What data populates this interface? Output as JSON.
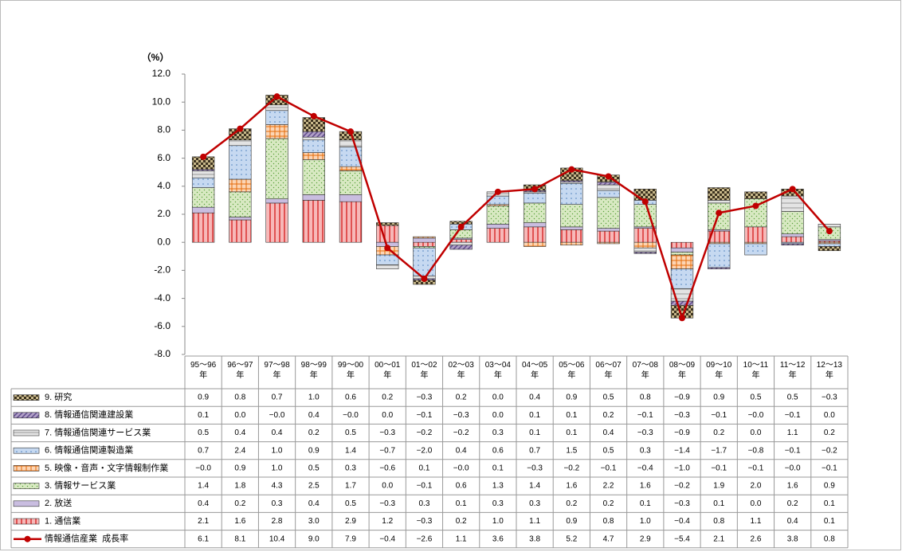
{
  "chart_data": {
    "type": "bar",
    "stacked": true,
    "y_label": "（%）",
    "categories": [
      "95～96\n年",
      "96～97\n年",
      "97～98\n年",
      "98～99\n年",
      "99～00\n年",
      "00～01\n年",
      "01～02\n年",
      "02～03\n年",
      "03～04\n年",
      "04～05\n年",
      "05～06\n年",
      "06～07\n年",
      "07～08\n年",
      "08～09\n年",
      "09～10\n年",
      "10～11\n年",
      "11～12\n年",
      "12～13\n年"
    ],
    "ylim": [
      -8,
      12
    ],
    "yticks": [
      {
        "value": 12,
        "label": "12.0"
      },
      {
        "value": 10,
        "label": "10.0"
      },
      {
        "value": 8,
        "label": "8.0"
      },
      {
        "value": 6,
        "label": "6.0"
      },
      {
        "value": 4,
        "label": "4.0"
      },
      {
        "value": 2,
        "label": "2.0"
      },
      {
        "value": 0,
        "label": "0.0"
      },
      {
        "value": -2,
        "label": "-2.0"
      },
      {
        "value": -4,
        "label": "-4.0"
      },
      {
        "value": -6,
        "label": "-6.0"
      },
      {
        "value": -8,
        "label": "-8.0"
      }
    ],
    "grid": false,
    "series": [
      {
        "name": "9. 研究",
        "color": "#c8b88a",
        "pattern": "checker",
        "values": [
          0.9,
          0.8,
          0.7,
          1.0,
          0.6,
          0.2,
          -0.3,
          0.2,
          0.0,
          0.4,
          0.9,
          0.5,
          0.8,
          -0.9,
          0.9,
          0.5,
          0.5,
          -0.3
        ],
        "value_labels": [
          "0.9",
          "0.8",
          "0.7",
          "1.0",
          "0.6",
          "0.2",
          "−0.3",
          "0.2",
          "0.0",
          "0.4",
          "0.9",
          "0.5",
          "0.8",
          "−0.9",
          "0.9",
          "0.5",
          "0.5",
          "−0.3"
        ]
      },
      {
        "name": "8. 情報通信関連建設業",
        "color": "#b1a0c7",
        "pattern": "hatch",
        "values": [
          0.1,
          0.0,
          0,
          0.4,
          0,
          0.0,
          -0.1,
          -0.3,
          0.0,
          0.1,
          0.1,
          0.2,
          -0.1,
          -0.3,
          -0.1,
          0,
          -0.1,
          0.0
        ],
        "value_labels": [
          "0.1",
          "0.0",
          "−0.0",
          "0.4",
          "−0.0",
          "0.0",
          "−0.1",
          "−0.3",
          "0.0",
          "0.1",
          "0.1",
          "0.2",
          "−0.1",
          "−0.3",
          "−0.1",
          "−0.0",
          "−0.1",
          "0.0"
        ]
      },
      {
        "name": "7. 情報通信関連サービス業",
        "color": "#e3e3e3",
        "pattern": "hline",
        "values": [
          0.5,
          0.4,
          0.4,
          0.2,
          0.5,
          -0.3,
          -0.2,
          -0.2,
          0.3,
          0.1,
          0.1,
          0.4,
          -0.3,
          -0.9,
          0.2,
          0.0,
          1.1,
          0.2
        ],
        "value_labels": [
          "0.5",
          "0.4",
          "0.4",
          "0.2",
          "0.5",
          "−0.3",
          "−0.2",
          "−0.2",
          "0.3",
          "0.1",
          "0.1",
          "0.4",
          "−0.3",
          "−0.9",
          "0.2",
          "0.0",
          "1.1",
          "0.2"
        ]
      },
      {
        "name": "6. 情報通信関連製造業",
        "color": "#c6d9f1",
        "pattern": "dots",
        "values": [
          0.7,
          2.4,
          1.0,
          0.9,
          1.4,
          -0.7,
          -2.0,
          0.4,
          0.6,
          0.7,
          1.5,
          0.5,
          0.3,
          -1.4,
          -1.7,
          -0.8,
          -0.1,
          -0.2
        ],
        "value_labels": [
          "0.7",
          "2.4",
          "1.0",
          "0.9",
          "1.4",
          "−0.7",
          "−2.0",
          "0.4",
          "0.6",
          "0.7",
          "1.5",
          "0.5",
          "0.3",
          "−1.4",
          "−1.7",
          "−0.8",
          "−0.1",
          "−0.2"
        ]
      },
      {
        "name": "5. 映像・音声・文字情報制作業",
        "color": "#fcd5b4",
        "pattern": "grid",
        "values": [
          0,
          0.9,
          1.0,
          0.5,
          0.3,
          -0.6,
          0.1,
          0,
          0.1,
          -0.3,
          -0.2,
          -0.1,
          -0.4,
          -1.0,
          -0.1,
          -0.1,
          0,
          -0.1
        ],
        "value_labels": [
          "−0.0",
          "0.9",
          "1.0",
          "0.5",
          "0.3",
          "−0.6",
          "0.1",
          "−0.0",
          "0.1",
          "−0.3",
          "−0.2",
          "−0.1",
          "−0.4",
          "−1.0",
          "−0.1",
          "−0.1",
          "−0.0",
          "−0.1"
        ]
      },
      {
        "name": "3. 情報サービス業",
        "color": "#d8e9c2",
        "pattern": "sdots",
        "values": [
          1.4,
          1.8,
          4.3,
          2.5,
          1.7,
          0.0,
          -0.1,
          0.6,
          1.3,
          1.4,
          1.6,
          2.2,
          1.6,
          -0.2,
          1.9,
          2.0,
          1.6,
          0.9
        ],
        "value_labels": [
          "1.4",
          "1.8",
          "4.3",
          "2.5",
          "1.7",
          "0.0",
          "−0.1",
          "0.6",
          "1.3",
          "1.4",
          "1.6",
          "2.2",
          "1.6",
          "−0.2",
          "1.9",
          "2.0",
          "1.6",
          "0.9"
        ]
      },
      {
        "name": "2. 放送",
        "color": "#c9bde0",
        "pattern": "solid",
        "values": [
          0.4,
          0.2,
          0.3,
          0.4,
          0.5,
          -0.3,
          0.3,
          0.1,
          0.3,
          0.3,
          0.2,
          0.2,
          0.1,
          -0.3,
          0.1,
          0.0,
          0.2,
          0.1
        ],
        "value_labels": [
          "0.4",
          "0.2",
          "0.3",
          "0.4",
          "0.5",
          "−0.3",
          "0.3",
          "0.1",
          "0.3",
          "0.3",
          "0.2",
          "0.2",
          "0.1",
          "−0.3",
          "0.1",
          "0.0",
          "0.2",
          "0.1"
        ]
      },
      {
        "name": "1. 通信業",
        "color": "#f7b8b8",
        "pattern": "stripes",
        "values": [
          2.1,
          1.6,
          2.8,
          3.0,
          2.9,
          1.2,
          -0.3,
          0.2,
          1.0,
          1.1,
          0.9,
          0.8,
          1.0,
          -0.4,
          0.8,
          1.1,
          0.4,
          0.1
        ],
        "value_labels": [
          "2.1",
          "1.6",
          "2.8",
          "3.0",
          "2.9",
          "1.2",
          "−0.3",
          "0.2",
          "1.0",
          "1.1",
          "0.9",
          "0.8",
          "1.0",
          "−0.4",
          "0.8",
          "1.1",
          "0.4",
          "0.1"
        ]
      },
      {
        "name": "情報通信産業  成長率",
        "type": "line",
        "color": "#c00000",
        "values": [
          6.1,
          8.1,
          10.4,
          9.0,
          7.9,
          -0.4,
          -2.6,
          1.1,
          3.6,
          3.8,
          5.2,
          4.7,
          2.9,
          -5.4,
          2.1,
          2.6,
          3.8,
          0.8
        ],
        "value_labels": [
          "6.1",
          "8.1",
          "10.4",
          "9.0",
          "7.9",
          "−0.4",
          "−2.6",
          "1.1",
          "3.6",
          "3.8",
          "5.2",
          "4.7",
          "2.9",
          "−5.4",
          "2.1",
          "2.6",
          "3.8",
          "0.8"
        ]
      }
    ]
  }
}
